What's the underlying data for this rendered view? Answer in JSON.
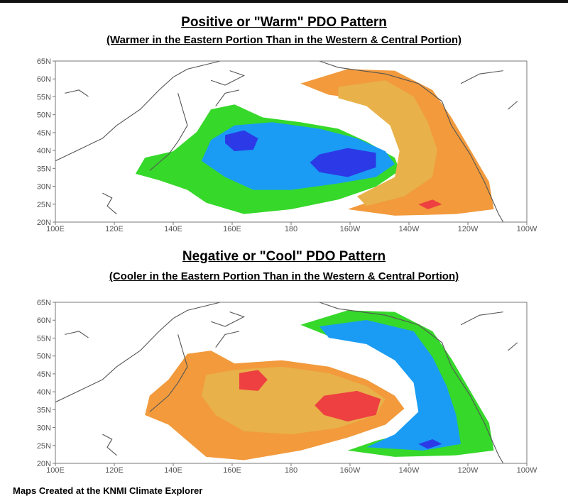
{
  "maps": [
    {
      "title": "Positive or \"Warm\" PDO Pattern",
      "subtitle": "(Warmer in the Eastern Portion Than in the Western & Central Portion)",
      "pattern": "warm"
    },
    {
      "title": "Negative or \"Cool\" PDO Pattern",
      "subtitle": "(Cooler in the Eastern Portion Than in the Western & Central Portion)",
      "pattern": "cool"
    }
  ],
  "lat_labels": [
    "65N",
    "60N",
    "55N",
    "50N",
    "45N",
    "40N",
    "35N",
    "30N",
    "25N",
    "20N"
  ],
  "lon_labels": [
    "100E",
    "120E",
    "140E",
    "160E",
    "180",
    "160W",
    "140W",
    "120W",
    "100W"
  ],
  "footer": "Maps Created at the KNMI Climate Explorer",
  "colors": {
    "warm_strong": "#ee4040",
    "warm_mid": "#f29a3c",
    "warm_light": "#e8b14a",
    "cool_light": "#36d82a",
    "cool_mid": "#1a9cf4",
    "cool_strong": "#2b3ae6",
    "land_line": "#555555"
  }
}
